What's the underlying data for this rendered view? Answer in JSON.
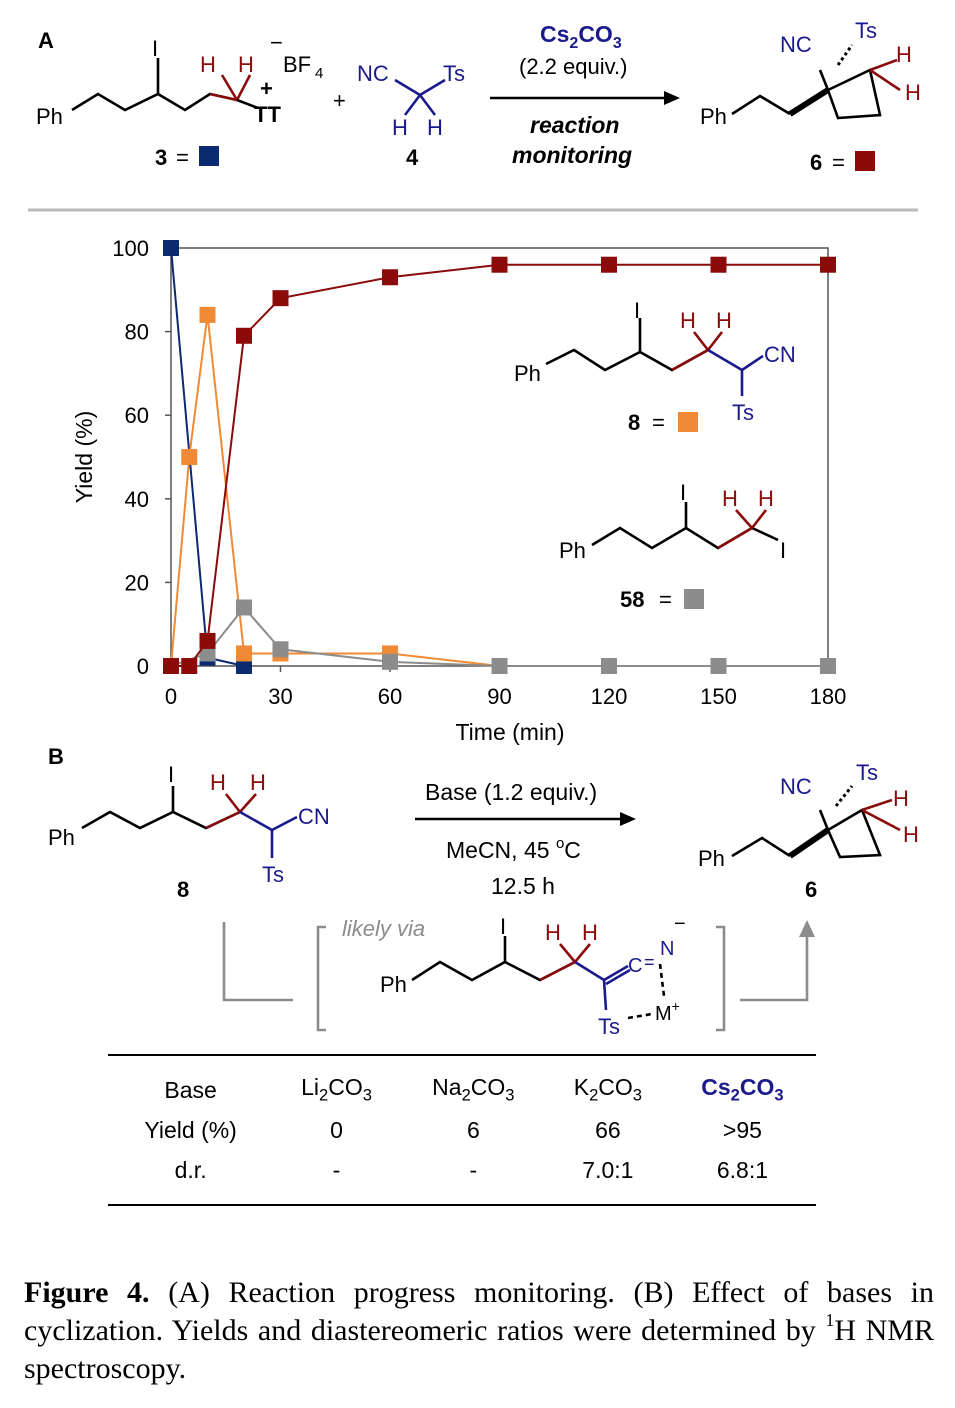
{
  "panel_a": {
    "label": "A",
    "reagent": "Cs2CO3",
    "equiv": "(2.2 equiv.)",
    "condition_1": "reaction",
    "condition_2": "monitoring",
    "compound_3_label": "3",
    "compound_4_label": "4",
    "compound_6_label": "6",
    "legend_3_color": "#0b2b6e",
    "legend_6_color": "#8b0a0a"
  },
  "chart_data": {
    "type": "line",
    "xlabel": "Time (min)",
    "ylabel": "Yield (%)",
    "xlim": [
      0,
      180
    ],
    "ylim": [
      0,
      100
    ],
    "xticks": [
      0,
      30,
      60,
      90,
      120,
      150,
      180
    ],
    "yticks": [
      0,
      20,
      40,
      60,
      80,
      100
    ],
    "grid": false,
    "series": [
      {
        "name": "3",
        "color": "#0b2b6e",
        "x": [
          0,
          10,
          20
        ],
        "y": [
          100,
          2,
          0
        ]
      },
      {
        "name": "8",
        "color": "#f08a36",
        "x": [
          0,
          5,
          10,
          20,
          30,
          60,
          90
        ],
        "y": [
          0,
          50,
          84,
          3,
          3,
          3,
          0
        ]
      },
      {
        "name": "58",
        "color": "#8c8c8c",
        "x": [
          0,
          10,
          20,
          30,
          60,
          90,
          120,
          150,
          180
        ],
        "y": [
          0,
          3,
          14,
          4,
          1,
          0,
          0,
          0,
          0
        ]
      },
      {
        "name": "6",
        "color": "#8b0a0a",
        "x": [
          0,
          5,
          10,
          20,
          30,
          60,
          90,
          120,
          150,
          180
        ],
        "y": [
          0,
          0,
          6,
          79,
          88,
          93,
          96,
          96,
          96,
          96
        ]
      }
    ],
    "legend_8": "8",
    "legend_58": "58"
  },
  "panel_b": {
    "label": "B",
    "base": "Base (1.2 equiv.)",
    "solvent": "MeCN, 45 °C",
    "time": "12.5 h",
    "compound_8_label": "8",
    "compound_6_label": "6",
    "likely_via": "likely via"
  },
  "table": {
    "headers": [
      "Base",
      "Li2CO3",
      "Na2CO3",
      "K2CO3",
      "Cs2CO3"
    ],
    "rows": [
      [
        "Yield (%)",
        "0",
        "6",
        "66",
        ">95"
      ],
      [
        "d.r.",
        "-",
        "-",
        "7.0:1",
        "6.8:1"
      ]
    ]
  },
  "caption": {
    "figure": "Figure 4.",
    "text": "(A) Reaction progress monitoring. (B) Effect of bases in cyclization. Yields and diastereomeric ratios were determined by 1H NMR spectroscopy."
  }
}
